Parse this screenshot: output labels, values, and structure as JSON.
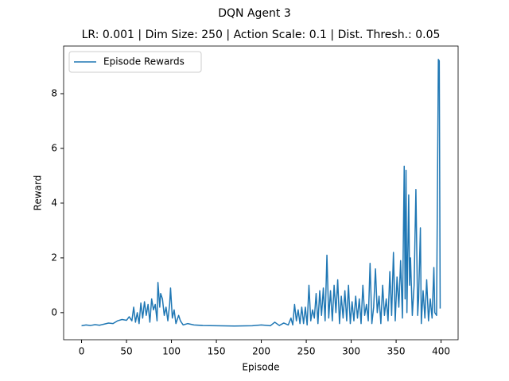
{
  "chart_data": {
    "type": "line",
    "title": "DQN Agent 3",
    "subtitle": "LR: 0.001 | Dim Size: 250 | Action Scale: 0.1 | Dist. Thresh.: 0.05",
    "x_label": "Episode",
    "y_label": "Reward",
    "x": [
      0,
      5,
      10,
      15,
      20,
      25,
      30,
      35,
      40,
      45,
      50,
      53,
      56,
      58,
      60,
      62,
      64,
      66,
      68,
      70,
      72,
      74,
      76,
      78,
      80,
      82,
      84,
      85,
      87,
      88,
      90,
      92,
      94,
      96,
      98,
      99,
      101,
      103,
      105,
      108,
      110,
      113,
      118,
      125,
      135,
      150,
      170,
      190,
      200,
      210,
      215,
      220,
      225,
      230,
      233,
      235,
      237,
      239,
      241,
      243,
      245,
      247,
      249,
      251,
      253,
      255,
      257,
      259,
      261,
      263,
      265,
      267,
      269,
      271,
      273,
      275,
      277,
      279,
      281,
      283,
      285,
      287,
      289,
      291,
      293,
      295,
      297,
      299,
      301,
      303,
      305,
      307,
      309,
      311,
      313,
      315,
      317,
      319,
      321,
      323,
      325,
      327,
      329,
      331,
      333,
      335,
      337,
      339,
      341,
      343,
      345,
      347,
      349,
      351,
      353,
      355,
      357,
      359,
      360,
      361,
      362,
      364,
      365,
      366,
      368,
      370,
      372,
      374,
      375,
      377,
      378,
      380,
      382,
      384,
      386,
      388,
      390,
      392,
      393,
      395,
      397,
      398,
      399
    ],
    "series": [
      {
        "name": "Episode Rewards",
        "color": "#1f77b4",
        "values": [
          -0.48,
          -0.45,
          -0.47,
          -0.44,
          -0.46,
          -0.42,
          -0.38,
          -0.4,
          -0.3,
          -0.25,
          -0.28,
          -0.15,
          -0.3,
          0.2,
          -0.35,
          0.0,
          -0.4,
          0.35,
          -0.2,
          0.4,
          -0.1,
          0.3,
          -0.35,
          0.5,
          0.1,
          0.3,
          -0.3,
          1.1,
          0.2,
          0.7,
          0.5,
          -0.1,
          0.2,
          -0.3,
          0.3,
          0.9,
          -0.2,
          0.1,
          -0.4,
          -0.1,
          -0.3,
          -0.45,
          -0.4,
          -0.45,
          -0.47,
          -0.48,
          -0.49,
          -0.48,
          -0.45,
          -0.48,
          -0.35,
          -0.47,
          -0.38,
          -0.45,
          -0.2,
          -0.45,
          0.3,
          -0.3,
          0.1,
          -0.4,
          0.2,
          -0.4,
          0.2,
          -0.45,
          1.0,
          -0.3,
          0.1,
          -0.2,
          0.7,
          -0.4,
          0.8,
          -0.1,
          0.9,
          -0.3,
          2.1,
          -0.2,
          0.8,
          -0.3,
          1.0,
          0.0,
          1.2,
          -0.4,
          0.6,
          -0.2,
          0.8,
          -0.3,
          1.0,
          -0.4,
          0.4,
          -0.3,
          0.6,
          -0.2,
          0.5,
          -0.4,
          1.0,
          -0.1,
          0.3,
          -0.3,
          1.8,
          -0.4,
          0.2,
          1.6,
          0.0,
          0.6,
          -0.4,
          1.0,
          -0.1,
          0.5,
          -0.3,
          1.5,
          -0.1,
          2.2,
          -0.3,
          1.3,
          0.2,
          1.9,
          -0.2,
          5.35,
          0.5,
          5.2,
          0.0,
          4.3,
          1.0,
          2.0,
          -0.1,
          1.0,
          4.5,
          -0.1,
          0.5,
          3.1,
          -0.4,
          0.8,
          -0.2,
          1.2,
          -0.3,
          0.5,
          -0.2,
          1.65,
          0.0,
          -0.1,
          9.25,
          9.2,
          0.15
        ]
      }
    ],
    "xlim": [
      -19.95,
      418.95
    ],
    "ylim": [
      -0.99,
      9.74
    ],
    "xticks": [
      0,
      50,
      100,
      150,
      200,
      250,
      300,
      350,
      400
    ],
    "yticks": [
      0,
      2,
      4,
      6,
      8
    ],
    "legend": "upper left"
  }
}
